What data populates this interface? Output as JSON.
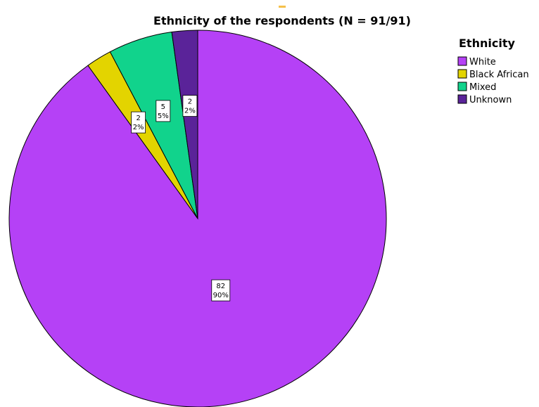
{
  "chart_data": {
    "type": "pie",
    "title": "Ethnicity of the respondents (N = 91/91)",
    "legend_title": "Ethnicity",
    "legend_position": "top-right",
    "start_angle": "12 o'clock, clockwise",
    "slices": [
      {
        "name": "White",
        "value": 82,
        "percent": "90%",
        "color": "#b541f6"
      },
      {
        "name": "Black African",
        "value": 2,
        "percent": "2%",
        "color": "#e3d400"
      },
      {
        "name": "Mixed",
        "value": 5,
        "percent": "5%",
        "color": "#11d38c"
      },
      {
        "name": "Unknown",
        "value": 2,
        "percent": "2%",
        "color": "#5a2399"
      }
    ],
    "accent_mark_color": "#f5c04a"
  }
}
